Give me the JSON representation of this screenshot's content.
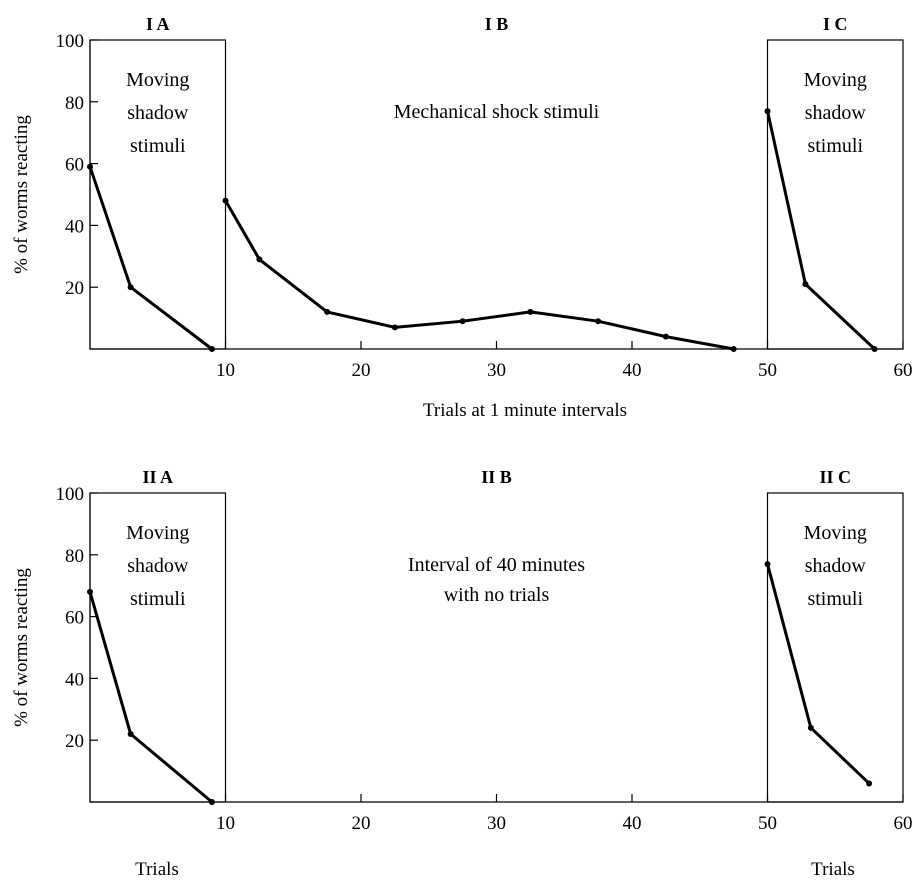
{
  "chart_data": [
    {
      "type": "line",
      "ylabel": "% of worms reacting",
      "xlabel": "Trials at 1 minute intervals",
      "xlim": [
        0,
        60
      ],
      "ylim": [
        0,
        100
      ],
      "x_ticks": [
        "10",
        "20",
        "30",
        "40",
        "50",
        "60"
      ],
      "y_ticks": [
        "20",
        "40",
        "60",
        "80",
        "100"
      ],
      "grid": false,
      "sections": [
        {
          "title": "I A",
          "annotation": [
            "Moving",
            "shadow",
            "stimuli"
          ],
          "x_range": [
            0,
            10
          ]
        },
        {
          "title": "I B",
          "annotation": [
            "Mechanical shock stimuli"
          ],
          "x_range": [
            10,
            50
          ]
        },
        {
          "title": "I C",
          "annotation": [
            "Moving",
            "shadow",
            "stimuli"
          ],
          "x_range": [
            50,
            60
          ]
        }
      ],
      "series": [
        {
          "x": [
            0,
            3,
            9
          ],
          "y": [
            59,
            20,
            0
          ]
        },
        {
          "x": [
            10,
            12.5,
            17.5,
            22.5,
            27.5,
            32.5,
            37.5,
            42.5,
            47.5
          ],
          "y": [
            48,
            29,
            12,
            7,
            9,
            12,
            9,
            4,
            0
          ]
        },
        {
          "x": [
            50,
            52.8,
            57.9
          ],
          "y": [
            77,
            21,
            0
          ]
        }
      ]
    },
    {
      "type": "line",
      "ylabel": "% of worms reacting",
      "xlabel_left": "Trials",
      "xlabel_right": "Trials",
      "xlim": [
        0,
        60
      ],
      "ylim": [
        0,
        100
      ],
      "x_ticks": [
        "10",
        "20",
        "30",
        "40",
        "50",
        "60"
      ],
      "y_ticks": [
        "20",
        "40",
        "60",
        "80",
        "100"
      ],
      "grid": false,
      "sections": [
        {
          "title": "II A",
          "annotation": [
            "Moving",
            "shadow",
            "stimuli"
          ],
          "x_range": [
            0,
            10
          ]
        },
        {
          "title": "II B",
          "annotation": [
            "Interval of 40 minutes",
            "with no trials"
          ],
          "x_range": [
            10,
            50
          ]
        },
        {
          "title": "II C",
          "annotation": [
            "Moving",
            "shadow",
            "stimuli"
          ],
          "x_range": [
            50,
            60
          ]
        }
      ],
      "series": [
        {
          "x": [
            0,
            3,
            9
          ],
          "y": [
            68,
            22,
            0
          ]
        },
        {
          "x": [
            50,
            53.2,
            57.5
          ],
          "y": [
            77,
            24,
            6
          ]
        }
      ]
    }
  ]
}
